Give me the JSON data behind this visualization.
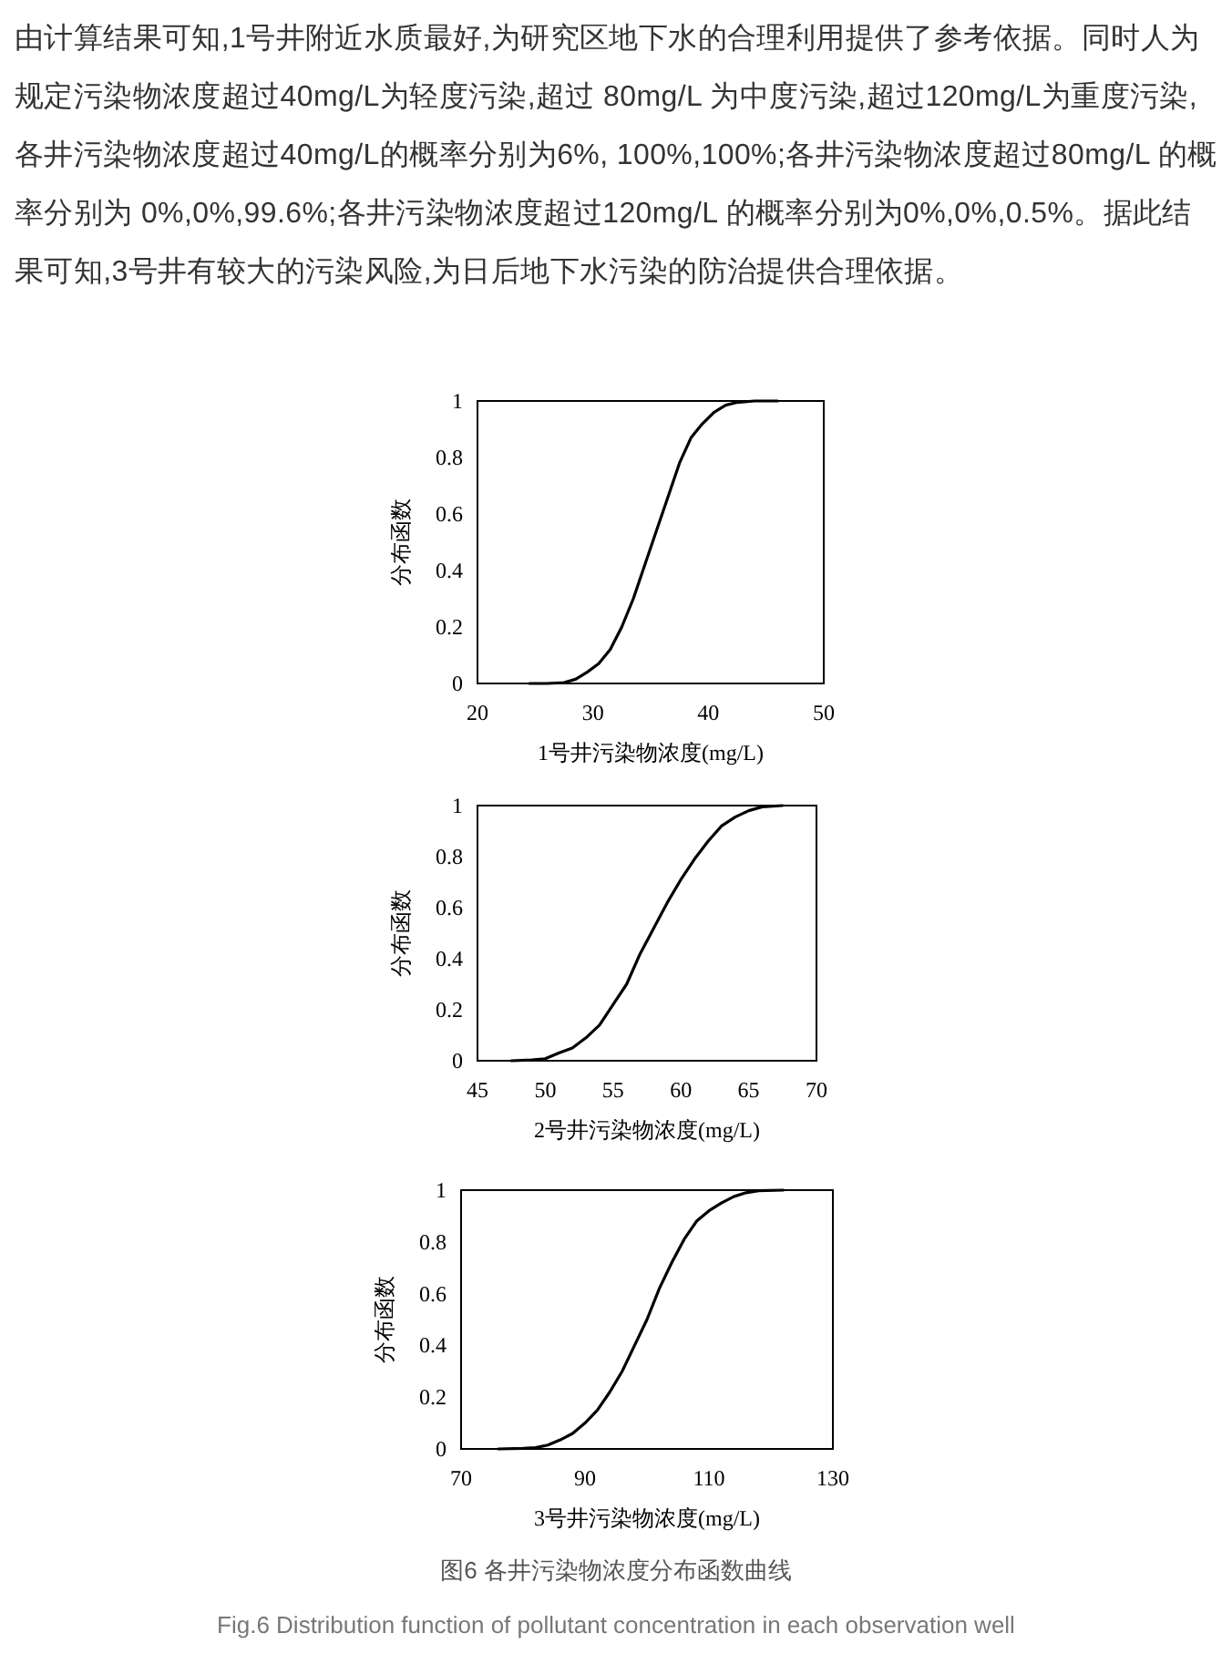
{
  "chart_data": [
    {
      "type": "line",
      "annotations": [
        "由计算结果可知,1号井附近水质最好,为研究区地下水的合理利用提供了参考依据。同时人为规定污染物浓度超过40mg/L为轻度污染,超过 80mg/L 为中度污染,超过120mg/L为重度污染,各井污染物浓度超过40mg/L的概率分别为6%, 100%,100%;各井污染物浓度超过80mg/L 的概率分别为 0%,0%,99.6%;各井污染物浓度超过120mg/L 的概率分别为0%,0%,0.5%。据此结果可知,3号井有较大的污染风险,为日后地下水污染的防治提供合理依据。"
      ],
      "xlabel": "1号井污染物浓度(mg/L)",
      "ylabel": "分布函数",
      "xlim": [
        20,
        50
      ],
      "xticks": [
        20,
        30,
        40,
        50
      ],
      "ylim": [
        0,
        1
      ],
      "yticks": [
        0,
        0.2,
        0.4,
        0.6,
        0.8,
        1
      ],
      "grid": false,
      "series": [
        {
          "color": "#000000",
          "x": [
            24.5,
            26,
            27.5,
            28.5,
            29.5,
            30.5,
            31.5,
            32.5,
            33.5,
            34.5,
            35.5,
            36.5,
            37.5,
            38.5,
            39.5,
            40.5,
            41.5,
            42.5,
            44,
            46
          ],
          "values": [
            0,
            0,
            0.003,
            0.015,
            0.04,
            0.07,
            0.12,
            0.2,
            0.3,
            0.42,
            0.54,
            0.66,
            0.78,
            0.87,
            0.92,
            0.96,
            0.985,
            0.995,
            1,
            1
          ]
        }
      ]
    },
    {
      "type": "line",
      "xlabel": "2号井污染物浓度(mg/L)",
      "ylabel": "分布函数",
      "xlim": [
        45,
        70
      ],
      "xticks": [
        45,
        50,
        55,
        60,
        65,
        70
      ],
      "ylim": [
        0,
        1
      ],
      "yticks": [
        0,
        0.2,
        0.4,
        0.6,
        0.8,
        1
      ],
      "grid": false,
      "series": [
        {
          "color": "#000000",
          "x": [
            47.5,
            49,
            50,
            51,
            52,
            53,
            54,
            55,
            56,
            57,
            58,
            59,
            60,
            61,
            62,
            63,
            64,
            65,
            66,
            67.5
          ],
          "values": [
            0,
            0.003,
            0.008,
            0.03,
            0.05,
            0.09,
            0.14,
            0.22,
            0.3,
            0.42,
            0.52,
            0.62,
            0.71,
            0.79,
            0.86,
            0.92,
            0.955,
            0.98,
            0.995,
            1
          ]
        }
      ]
    },
    {
      "type": "line",
      "annotations": [
        "图6 各井污染物浓度分布函数曲线",
        "Fig.6 Distribution function of pollutant concentration in each observation well"
      ],
      "xlabel": "3号井污染物浓度(mg/L)",
      "ylabel": "分布函数",
      "xlim": [
        70,
        130
      ],
      "xticks": [
        70,
        90,
        110,
        130
      ],
      "ylim": [
        0,
        1
      ],
      "yticks": [
        0,
        0.2,
        0.4,
        0.6,
        0.8,
        1
      ],
      "grid": false,
      "series": [
        {
          "color": "#000000",
          "x": [
            76,
            80,
            82,
            84,
            86,
            88,
            90,
            92,
            94,
            96,
            98,
            100,
            102,
            104,
            106,
            108,
            110,
            112,
            114,
            116,
            118,
            122
          ],
          "values": [
            0,
            0.002,
            0.005,
            0.015,
            0.035,
            0.06,
            0.1,
            0.15,
            0.22,
            0.3,
            0.4,
            0.5,
            0.62,
            0.72,
            0.81,
            0.88,
            0.92,
            0.95,
            0.975,
            0.99,
            0.998,
            1
          ]
        }
      ]
    }
  ]
}
